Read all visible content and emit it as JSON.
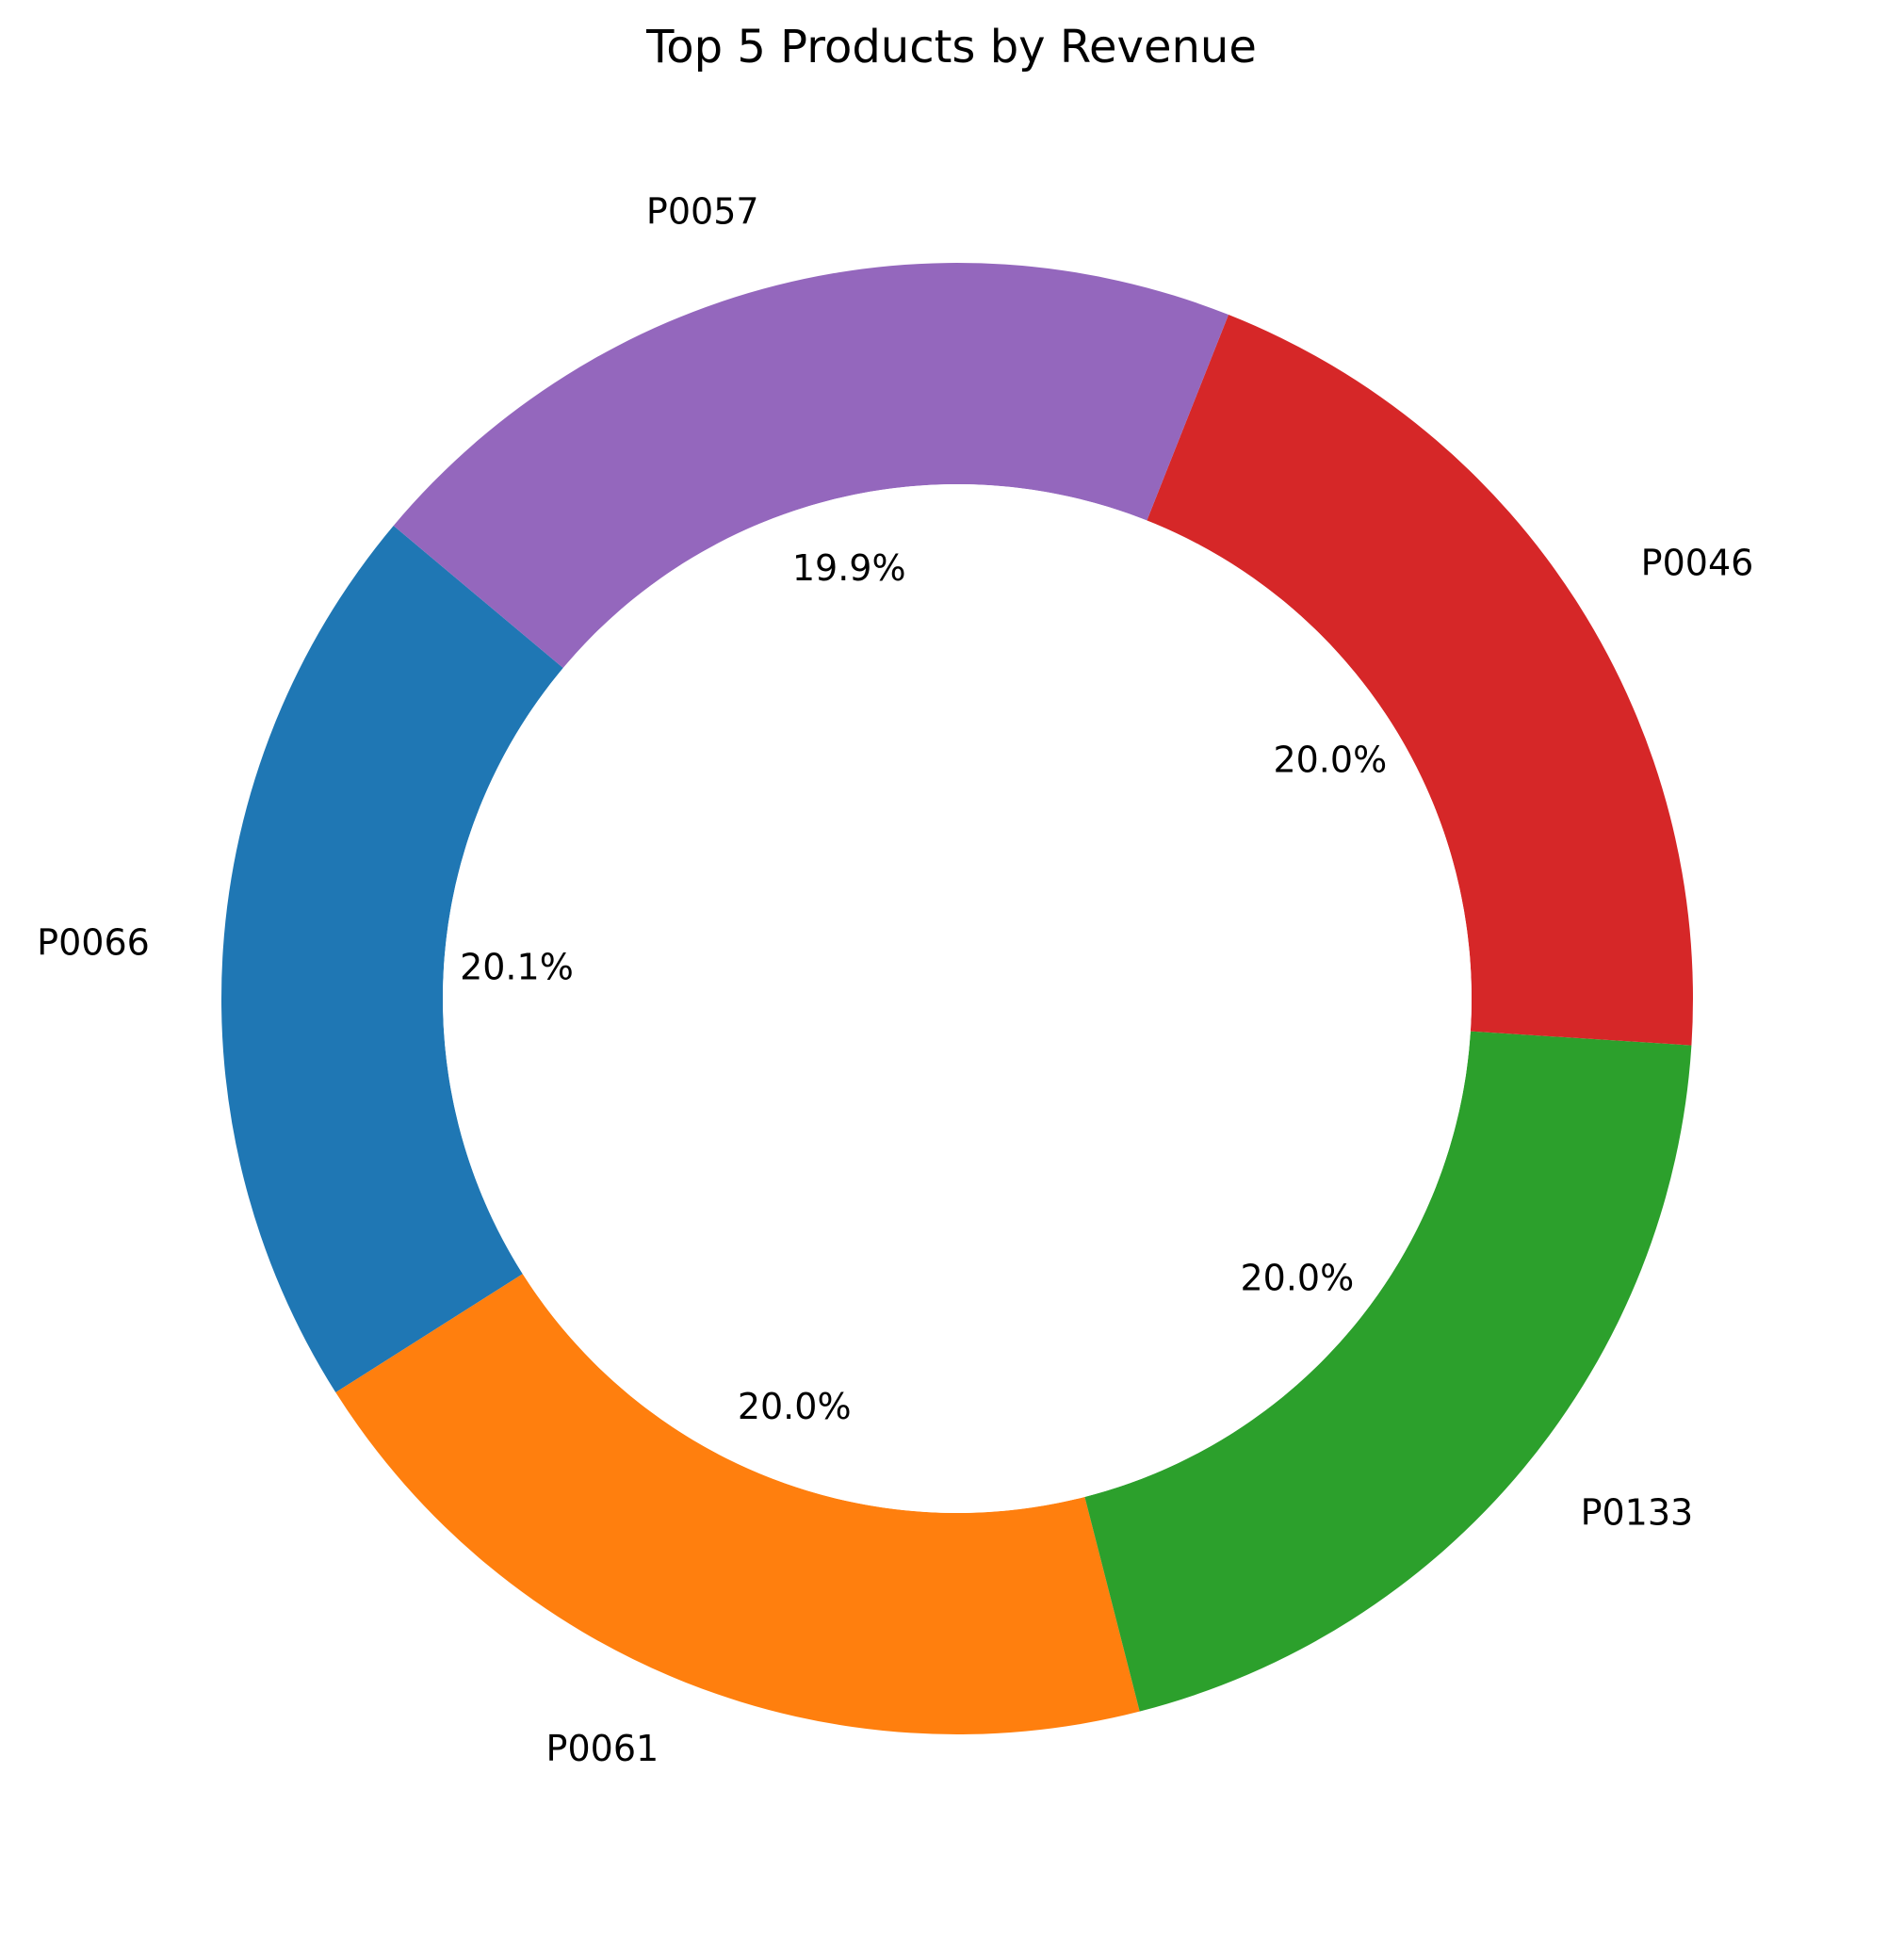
{
  "chart_data": {
    "type": "pie",
    "variant": "donut",
    "title": "Top 5 Products by Revenue",
    "legend": "none",
    "start_angle_deg": 140,
    "direction": "counterclockwise",
    "slices": [
      {
        "label": "P0066",
        "value": 20.1,
        "pct_label": "20.1%",
        "color": "#1f77b4"
      },
      {
        "label": "P0061",
        "value": 20.0,
        "pct_label": "20.0%",
        "color": "#ff7f0e"
      },
      {
        "label": "P0133",
        "value": 20.0,
        "pct_label": "20.0%",
        "color": "#2ca02c"
      },
      {
        "label": "P0046",
        "value": 20.0,
        "pct_label": "20.0%",
        "color": "#d62728"
      },
      {
        "label": "P0057",
        "value": 19.9,
        "pct_label": "19.9%",
        "color": "#9467bd"
      }
    ]
  }
}
